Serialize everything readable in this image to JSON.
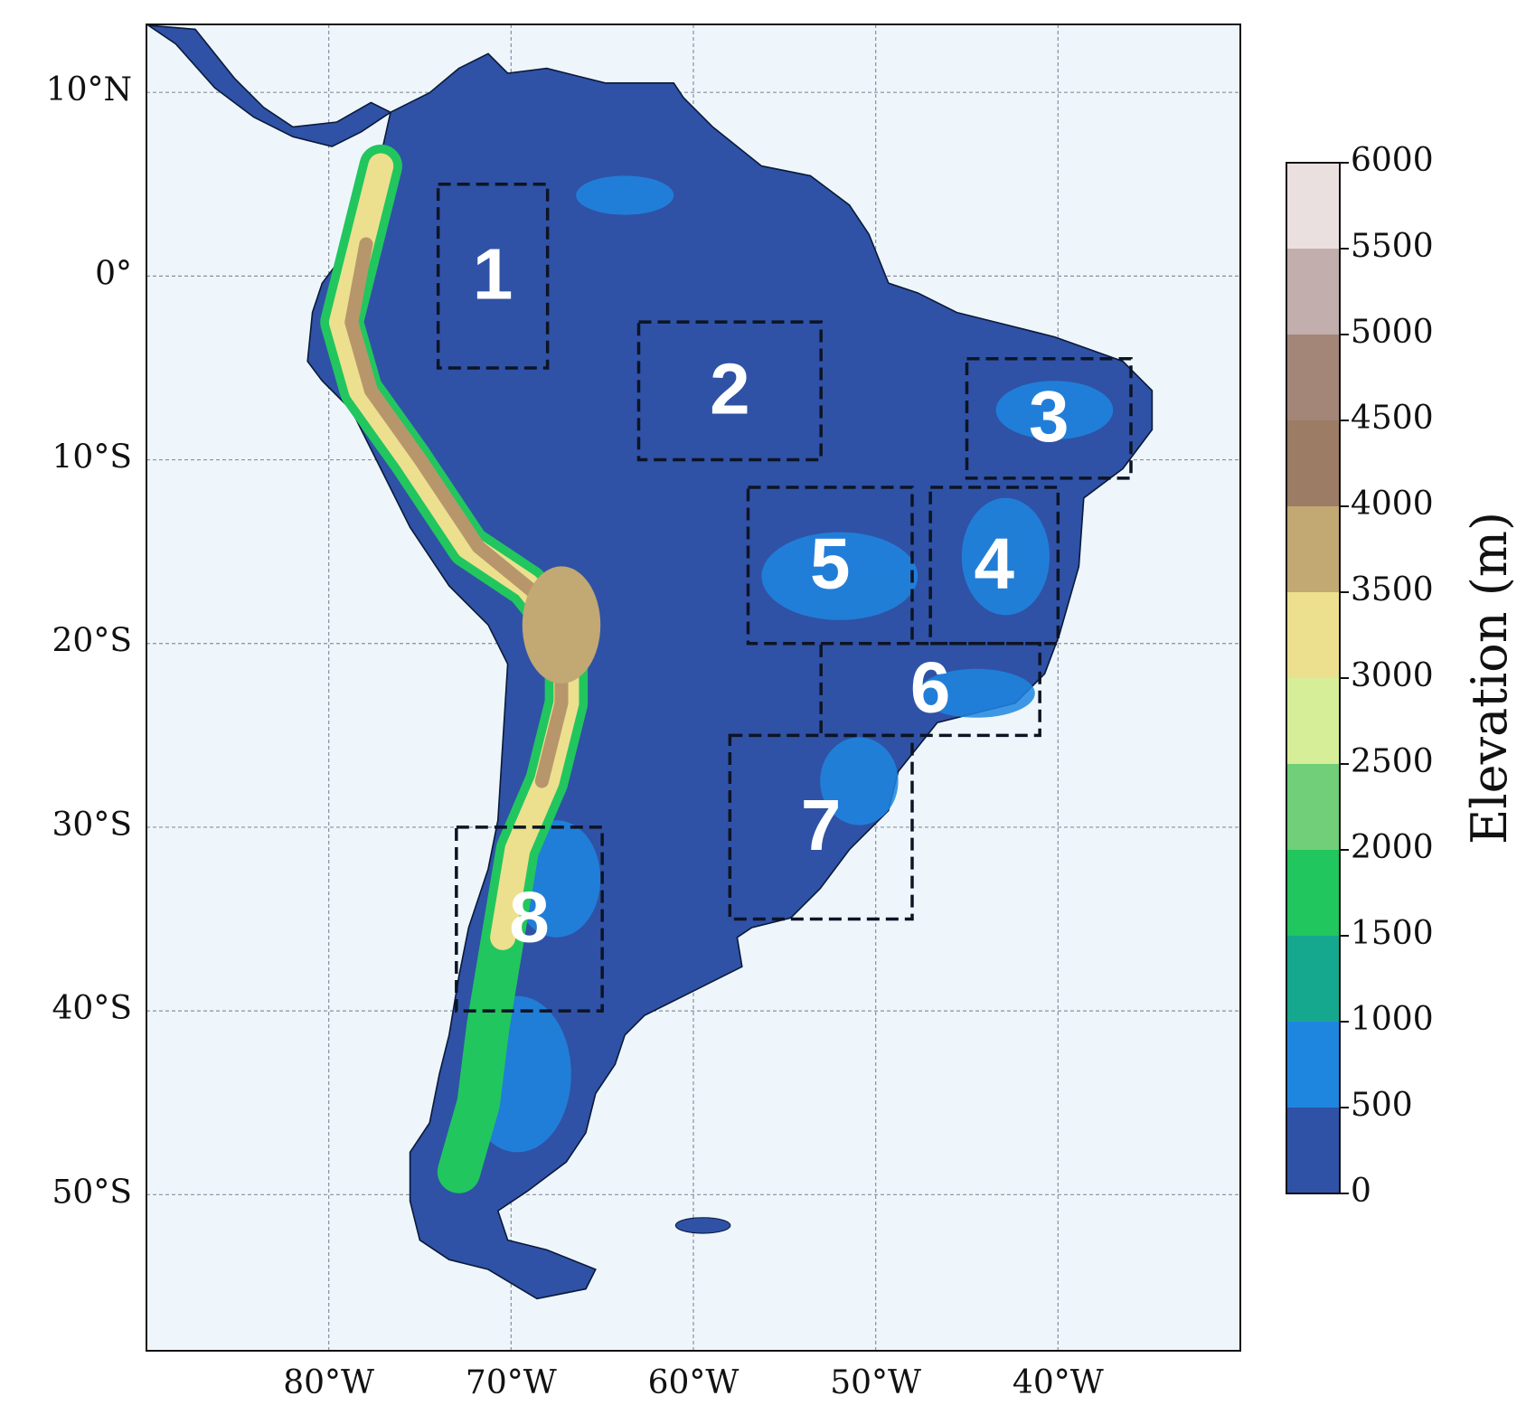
{
  "map": {
    "xlim": [
      -90,
      -30
    ],
    "ylim": [
      -58.5,
      13.7
    ],
    "xticks": [
      {
        "value": -80,
        "label": "80°W"
      },
      {
        "value": -70,
        "label": "70°W"
      },
      {
        "value": -60,
        "label": "60°W"
      },
      {
        "value": -50,
        "label": "50°W"
      },
      {
        "value": -40,
        "label": "40°W"
      }
    ],
    "yticks": [
      {
        "value": 10,
        "label": "10°N"
      },
      {
        "value": 0,
        "label": "0°"
      },
      {
        "value": -10,
        "label": "10°S"
      },
      {
        "value": -20,
        "label": "20°S"
      },
      {
        "value": -30,
        "label": "30°S"
      },
      {
        "value": -40,
        "label": "40°S"
      },
      {
        "value": -50,
        "label": "50°S"
      }
    ],
    "boxes": [
      {
        "label": "1",
        "lon": [
          -74,
          -68
        ],
        "lat": [
          -5,
          5
        ]
      },
      {
        "label": "2",
        "lon": [
          -63,
          -53
        ],
        "lat": [
          -10,
          -2.5
        ]
      },
      {
        "label": "3",
        "lon": [
          -45,
          -36
        ],
        "lat": [
          -11,
          -4.5
        ]
      },
      {
        "label": "4",
        "lon": [
          -47,
          -40
        ],
        "lat": [
          -20,
          -11.5
        ]
      },
      {
        "label": "5",
        "lon": [
          -57,
          -48
        ],
        "lat": [
          -20,
          -11.5
        ]
      },
      {
        "label": "6",
        "lon": [
          -53,
          -41
        ],
        "lat": [
          -25,
          -20
        ]
      },
      {
        "label": "7",
        "lon": [
          -58,
          -48
        ],
        "lat": [
          -35,
          -25
        ]
      },
      {
        "label": "8",
        "lon": [
          -73,
          -65
        ],
        "lat": [
          -40,
          -30
        ]
      }
    ],
    "colorbar": {
      "label": "Elevation (m)",
      "ticks": [
        0,
        500,
        1000,
        1500,
        2000,
        2500,
        3000,
        3500,
        4000,
        4500,
        5000,
        5500,
        6000
      ],
      "colors": [
        "#2f52a6",
        "#1f86e0",
        "#16a88e",
        "#22c65e",
        "#70cf78",
        "#d6ee98",
        "#ece08e",
        "#c2a872",
        "#9c7c64",
        "#a38678",
        "#c2aeac",
        "#ebe0e0"
      ]
    }
  }
}
